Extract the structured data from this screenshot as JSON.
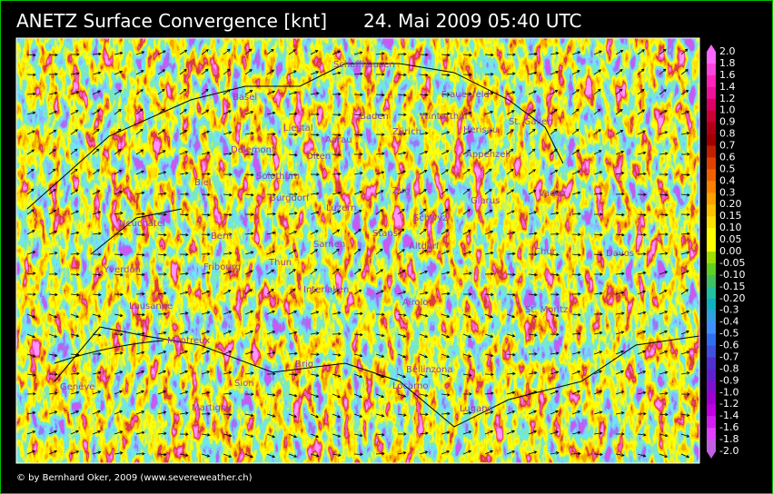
{
  "title": "ANETZ Surface Convergence [knt]",
  "timestamp": "24. Mai 2009 05:40 UTC",
  "copyright": "© by Bernhard Oker, 2009 (www.severeweather.ch)",
  "cities": [
    "Schaffhausen",
    "Basel",
    "Frauenfeld",
    "Liestal",
    "Baden",
    "Winterthur",
    "Zürich",
    "Herisau",
    "St. Gallen",
    "Aarau",
    "Delemont",
    "Olten",
    "Appenzell",
    "Solothurn",
    "Biel",
    "Burgdorf",
    "Luzern",
    "Zug",
    "Glarus",
    "Vaduz",
    "Schwyz",
    "Neuchâtel",
    "Bern",
    "Sarnen",
    "Stans",
    "Altdorf",
    "Chur",
    "Davos",
    "Yverdon",
    "Fribourg",
    "Thun",
    "Interlaken",
    "Airolo",
    "Lausanne",
    "St. Moritz",
    "Montreux",
    "Brig",
    "Bellinzona",
    "Locarno",
    "Genève",
    "Sion",
    "Martigny",
    "Lugano"
  ],
  "colorbar": {
    "ticks": [
      {
        "value": 2,
        "label": "2.0"
      },
      1.8,
      1.6,
      1.4,
      1.2,
      {
        "value": 1,
        "label": "1.0"
      },
      0.9,
      0.8,
      0.7,
      0.6,
      0.5,
      0.4,
      0.3,
      {
        "value": 0.2,
        "label": "0.20"
      },
      0.15,
      {
        "value": 0.1,
        "label": "0.10"
      },
      0.05,
      {
        "value": 0,
        "label": "0.00"
      },
      -0.05,
      {
        "value": -0.1,
        "label": "-0.10"
      },
      -0.15,
      {
        "value": -0.2,
        "label": "-0.20"
      },
      -0.3,
      -0.4,
      -0.5,
      -0.6,
      -0.7,
      -0.8,
      -0.9,
      {
        "value": -1,
        "label": "-1.0"
      },
      -1.2,
      -1.4,
      -1.6,
      -1.8,
      {
        "value": -2,
        "label": "-2.0"
      }
    ],
    "colors": [
      "#ff66ff",
      "#ff44dd",
      "#ff22bb",
      "#ee1199",
      "#dd0066",
      "#cc0033",
      "#b00018",
      "#a00000",
      "#c02000",
      "#e04000",
      "#f06000",
      "#ff8000",
      "#ffa000",
      "#ffc000",
      "#ffe000",
      "#ffff00",
      "#ffff00",
      "#a0e000",
      "#60d020",
      "#40c060",
      "#20c0a0",
      "#10b0c0",
      "#30a0e0",
      "#4090ff",
      "#3070f0",
      "#4050e0",
      "#5030d0",
      "#6020d0",
      "#8010d0",
      "#a000d0",
      "#c000e0",
      "#d020f0",
      "#e040ff",
      "#c060e0"
    ]
  }
}
